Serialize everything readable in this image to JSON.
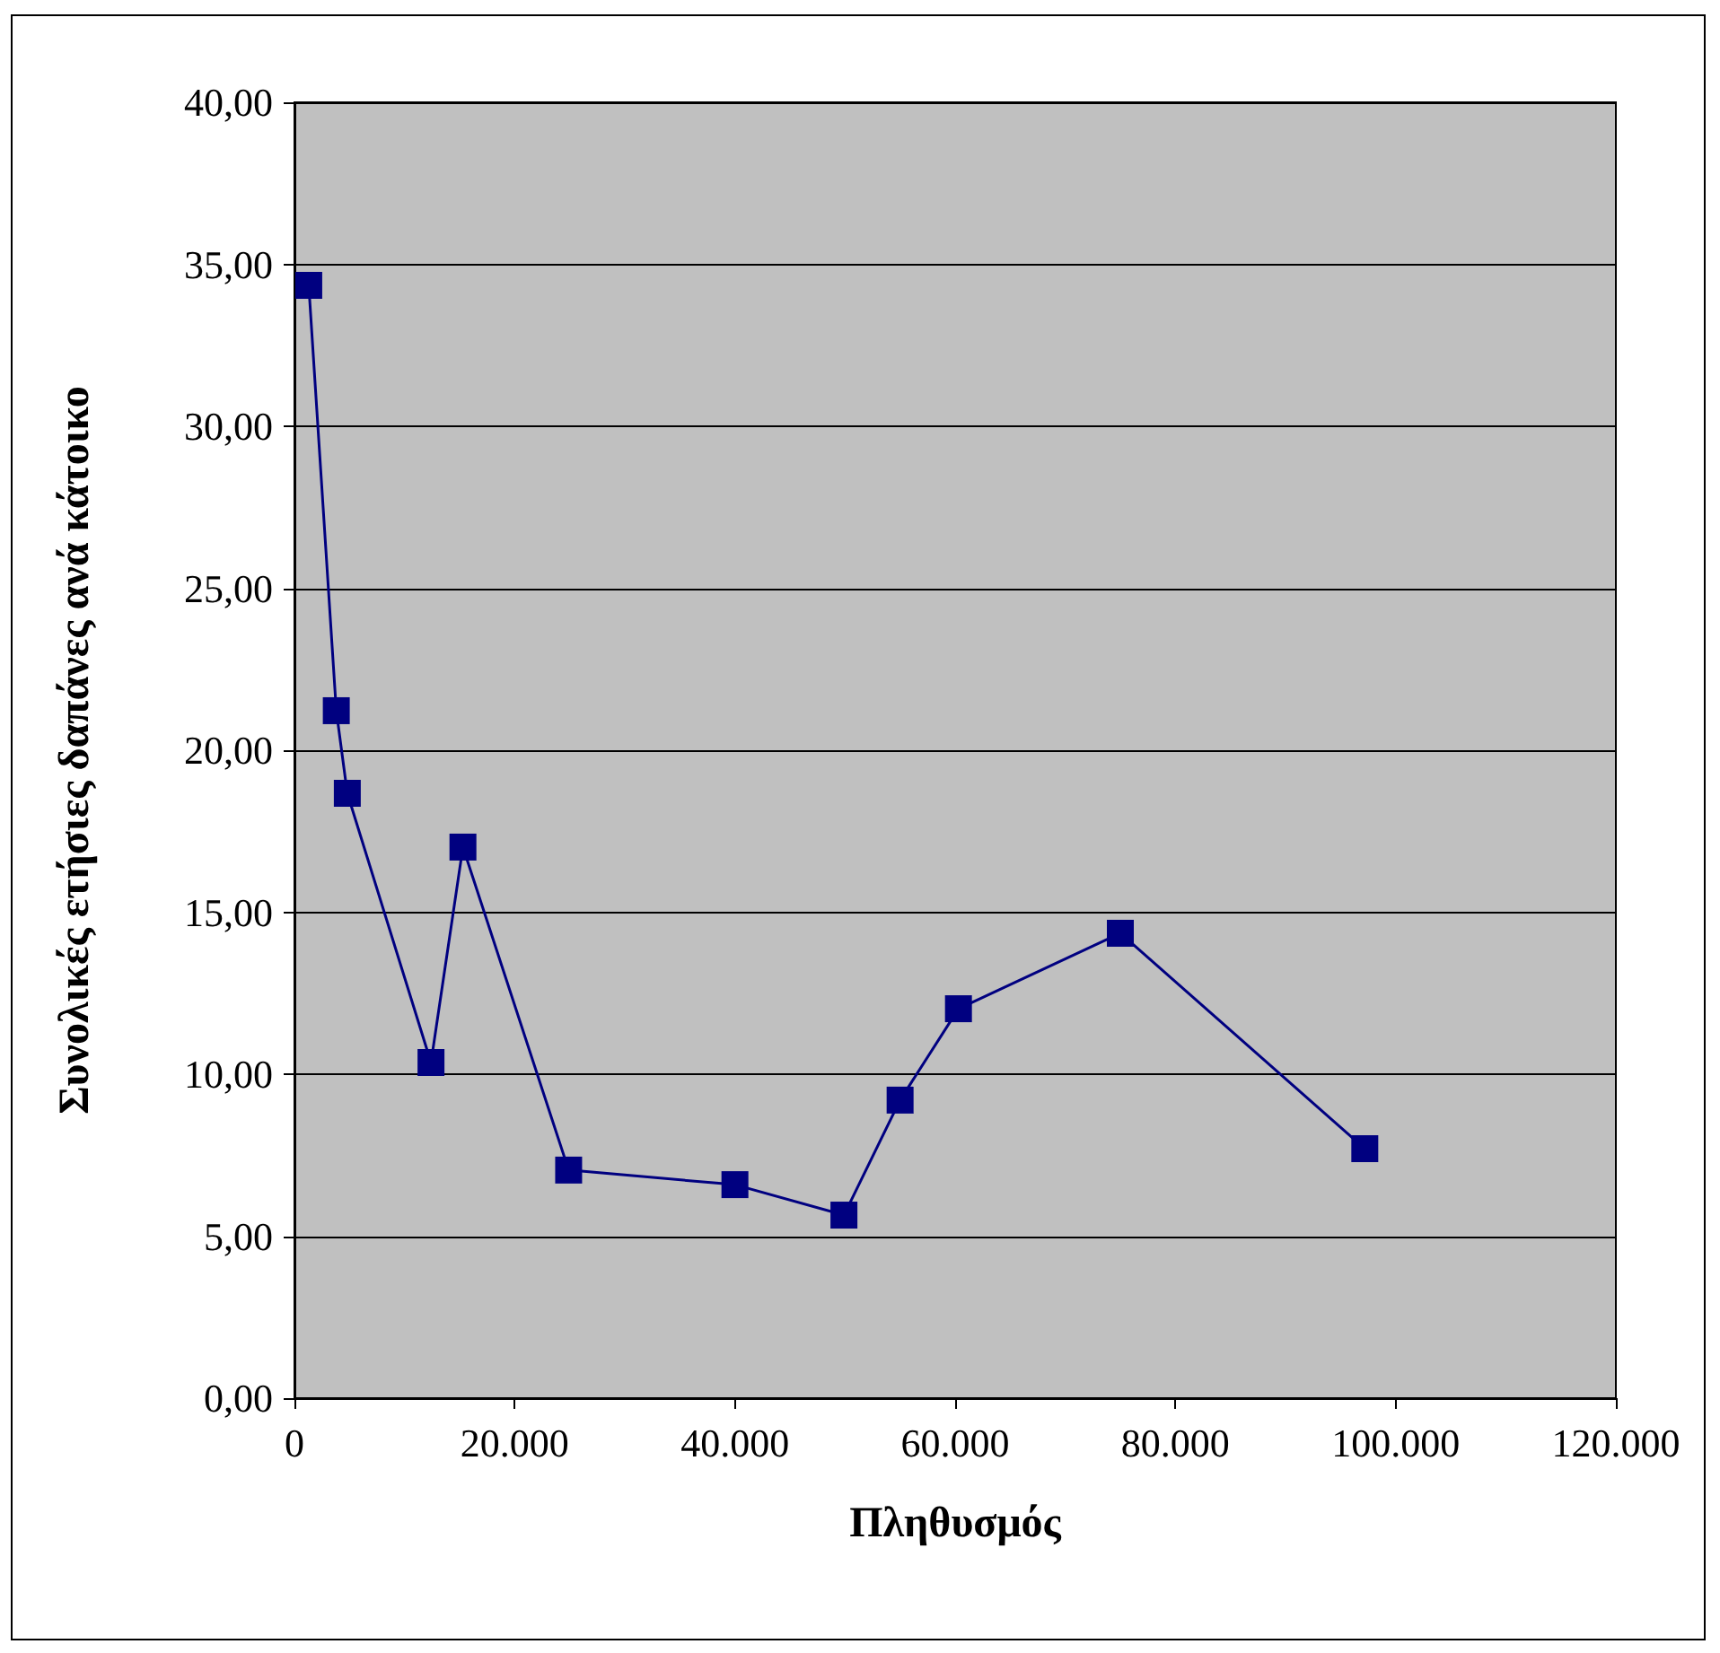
{
  "chart_data": {
    "type": "line",
    "xlabel": "Πληθυσμός",
    "ylabel": "Συνολικές ετήσιες δαπάνες ανά κάτοικο",
    "x": [
      1300,
      3800,
      4800,
      12400,
      15300,
      24900,
      40000,
      49900,
      55000,
      60300,
      75000,
      97200
    ],
    "series": [
      {
        "color": "#000080",
        "values": [
          34.35,
          21.22,
          18.67,
          10.36,
          17.01,
          7.04,
          6.59,
          5.65,
          9.2,
          12.02,
          14.35,
          7.7
        ]
      }
    ],
    "xlim": [
      0,
      120000
    ],
    "xticks": [
      0,
      {
        "value": 20000,
        "label": "20.000"
      },
      {
        "value": 40000,
        "label": "40.000"
      },
      {
        "value": 60000,
        "label": "60.000"
      },
      {
        "value": 80000,
        "label": "80.000"
      },
      {
        "value": 100000,
        "label": "100.000"
      },
      {
        "value": 120000,
        "label": "120.000"
      }
    ],
    "ylim": [
      0,
      40
    ],
    "yticks": [
      {
        "value": 0,
        "label": "0,00"
      },
      {
        "value": 5,
        "label": "5,00"
      },
      {
        "value": 10,
        "label": "10,00"
      },
      {
        "value": 15,
        "label": "15,00"
      },
      {
        "value": 20,
        "label": "20,00"
      },
      {
        "value": 25,
        "label": "25,00"
      },
      {
        "value": 30,
        "label": "30,00"
      },
      {
        "value": 35,
        "label": "35,00"
      },
      {
        "value": 40,
        "label": "40,00"
      }
    ],
    "grid": "y",
    "marker": "square",
    "line_style": "solid"
  }
}
